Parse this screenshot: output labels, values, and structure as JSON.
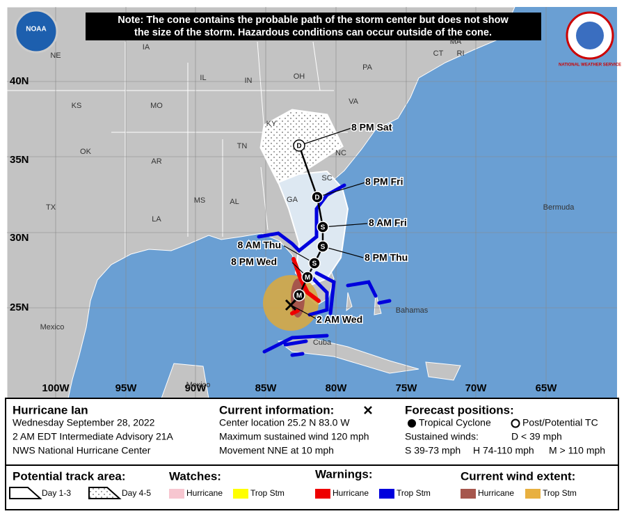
{
  "header": {
    "note_lines": [
      "Note: The cone contains the probable path of the storm center but does not show",
      "the size of the storm. Hazardous conditions can occur outside of the cone."
    ],
    "noaa": "NOAA",
    "nws": "NATIONAL WEATHER SERVICE"
  },
  "map": {
    "lat_labels": [
      "40N",
      "35N",
      "30N",
      "25N"
    ],
    "lon_labels": [
      "100W",
      "95W",
      "90W",
      "85W",
      "80W",
      "75W",
      "70W",
      "65W"
    ],
    "places": [
      "NE",
      "IA",
      "IL",
      "IN",
      "OH",
      "PA",
      "KS",
      "MO",
      "KY",
      "VA",
      "TN",
      "NC",
      "OK",
      "AR",
      "SC",
      "TX",
      "MS",
      "AL",
      "GA",
      "LA",
      "CT",
      "MA",
      "RI",
      "Bermuda",
      "Bahamas",
      "Cuba",
      "Mexico",
      "Mexico"
    ],
    "track_labels": [
      "8 PM Sat",
      "8 PM Fri",
      "8 AM Fri",
      "8 PM Thu",
      "8 AM Thu",
      "8 PM Wed",
      "2 AM Wed"
    ],
    "markers": [
      "M",
      "M",
      "S",
      "S",
      "S",
      "D",
      "D"
    ]
  },
  "info": {
    "storm_name": "Hurricane Ian",
    "date": "Wednesday September 28, 2022",
    "advisory": "2 AM EDT Intermediate Advisory 21A",
    "center": "NWS National Hurricane Center"
  },
  "current": {
    "title": "Current information:",
    "location": "Center location 25.2 N 83.0 W",
    "wind": "Maximum sustained wind 120 mph",
    "movement": "Movement NNE at 10 mph"
  },
  "forecast": {
    "title": "Forecast positions:",
    "tc": "Tropical Cyclone",
    "post": "Post/Potential TC",
    "sustained": "Sustained winds:",
    "d": "D < 39 mph",
    "s": "S 39-73 mph",
    "h": "H 74-110 mph",
    "m": "M > 110 mph"
  },
  "legend": {
    "track_title": "Potential track area:",
    "day13": "Day 1-3",
    "day45": "Day 4-5",
    "watches": "Watches:",
    "warnings": "Warnings:",
    "wind_extent": "Current wind extent:",
    "hurricane": "Hurricane",
    "trop_stm": "Trop Stm"
  }
}
